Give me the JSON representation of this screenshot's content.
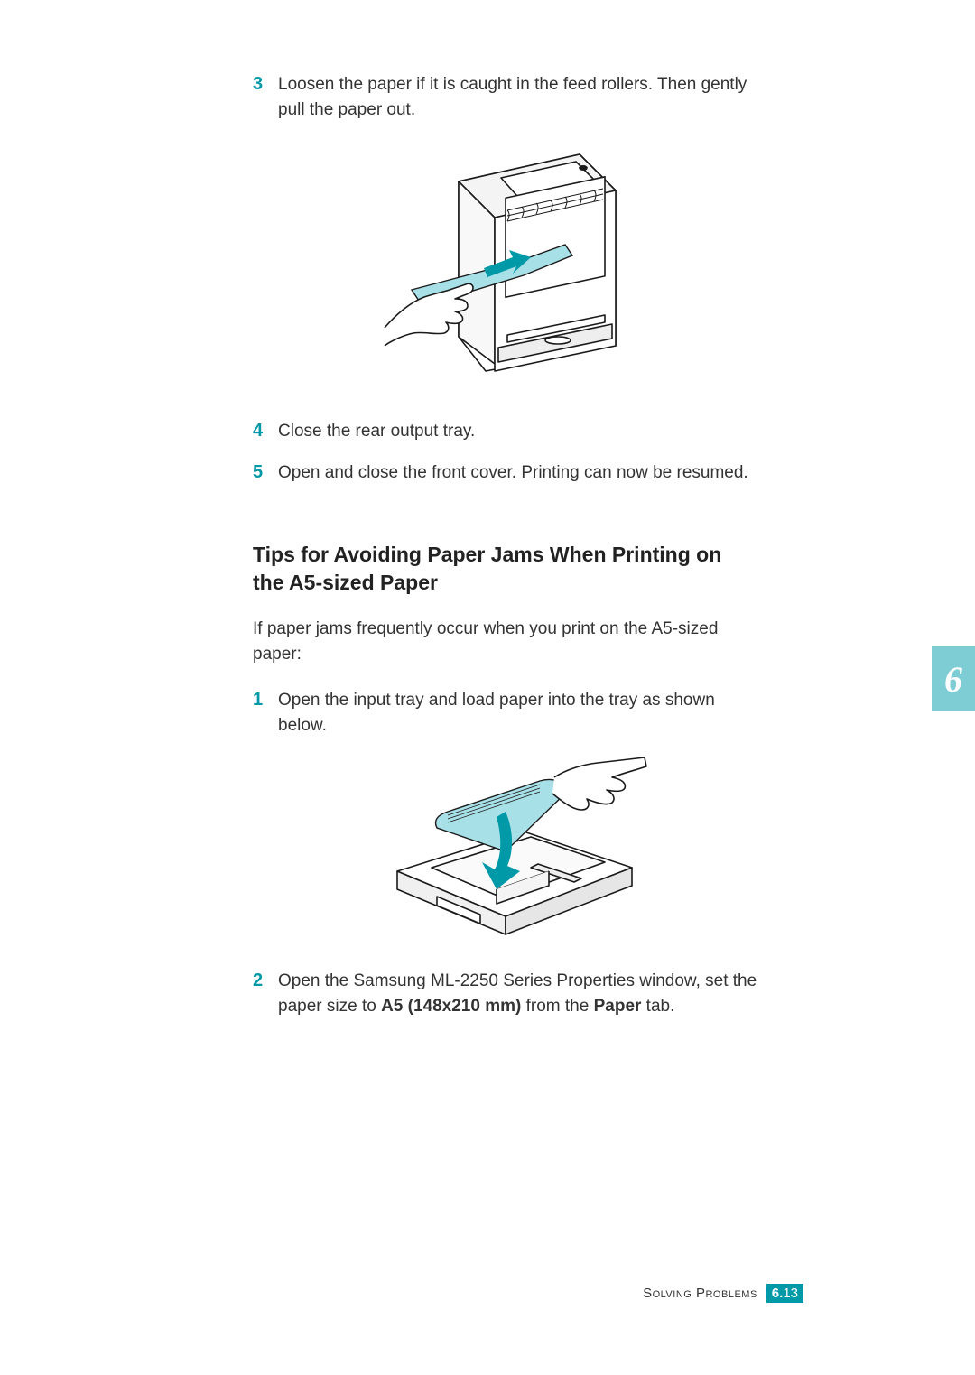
{
  "colors": {
    "accent": "#0099a8",
    "tab_bg": "#7fcdd4",
    "text": "#333333",
    "heading": "#222222",
    "white": "#ffffff",
    "paper_fill": "#a8e0e8",
    "arrow_fill": "#0099a8",
    "outline": "#1a1a1a"
  },
  "steps_top": [
    {
      "num": "3",
      "text": "Loosen the paper if it is caught in the feed rollers. Then gently pull the paper out."
    },
    {
      "num": "4",
      "text": "Close the rear output tray."
    },
    {
      "num": "5",
      "text": "Open and close the front cover. Printing can now be resumed."
    }
  ],
  "section_heading": "Tips for Avoiding Paper Jams When Printing on the A5-sized Paper",
  "intro": "If paper jams frequently occur when you print on the A5-sized paper:",
  "steps_bottom": [
    {
      "num": "1",
      "text": "Open the input tray and load paper into the tray as shown below."
    },
    {
      "num": "2",
      "html": "Open the Samsung ML-2250 Series Properties window, set the paper size to <b>A5 (148x210 mm)</b> from the <b>Paper</b> tab."
    }
  ],
  "chapter_tab": "6",
  "footer": {
    "label": "Solving Problems",
    "chapter": "6.",
    "page": "13"
  },
  "illustration1": {
    "description": "Line drawing: rear of laser printer with output tray open; a hand pulls a light-blue jammed sheet out along a blue arrow.",
    "paper_color": "#a8e0e8",
    "arrow_color": "#0099a8",
    "stroke": "#1a1a1a",
    "fill": "#ffffff"
  },
  "illustration2": {
    "description": "Line drawing: removed paper input tray viewed isometrically; a hand loads light-blue A5 sheets; blue curved arrow shows insertion direction.",
    "paper_color": "#a8e0e8",
    "arrow_color": "#0099a8",
    "stroke": "#1a1a1a",
    "fill": "#ffffff"
  }
}
